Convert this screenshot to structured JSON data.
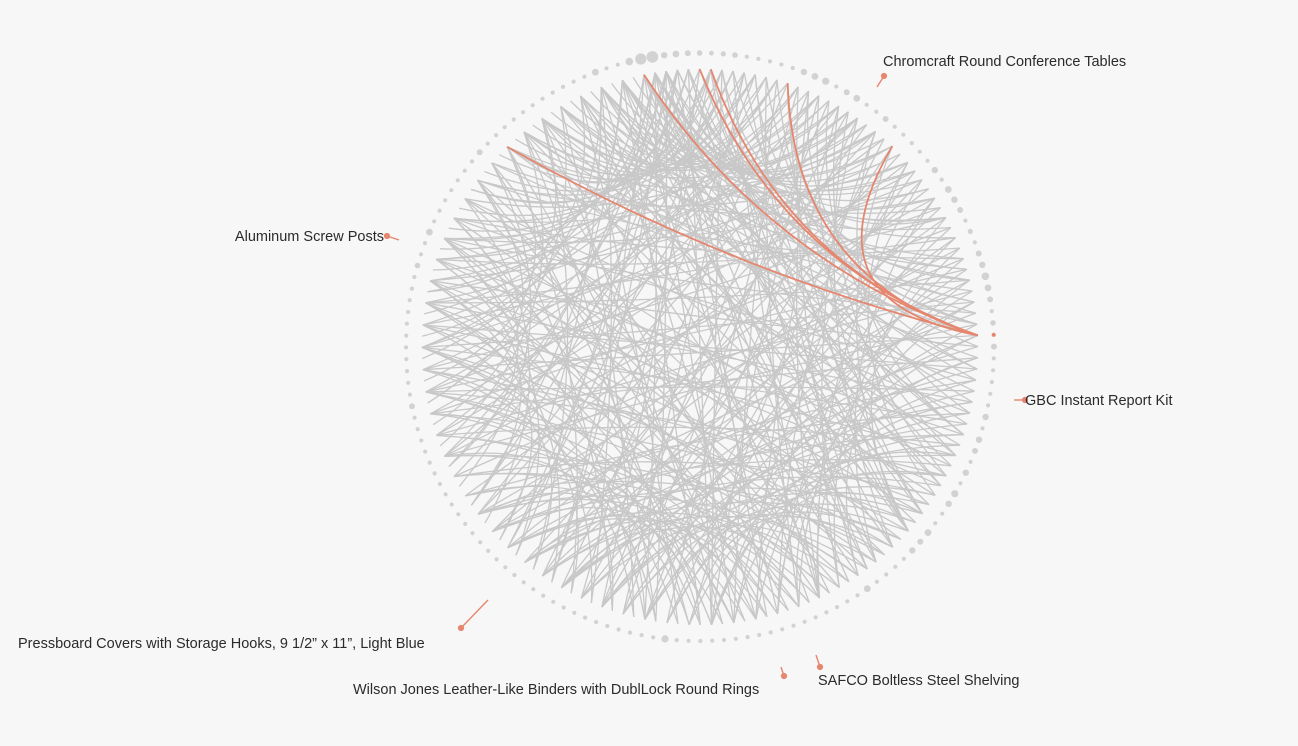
{
  "chart_data": {
    "type": "chord-network",
    "title": "",
    "node_count": 156,
    "node_sizes": {
      "0": 3.2,
      "1": 3.4,
      "2": 3.0,
      "3": 2.8,
      "4": 2.4,
      "5": 2.6,
      "6": 2.8,
      "12": 3.2,
      "13": 3.4,
      "14": 3.6,
      "16": 3.0,
      "17": 3.4,
      "20": 3.0,
      "26": 3.2,
      "28": 3.4,
      "29": 3.2,
      "30": 3.0,
      "32": 2.6,
      "34": 3.0,
      "35": 3.2,
      "36": 3.8,
      "37": 3.4,
      "38": 3.0,
      "40": 2.8,
      "42": 3.0,
      "48": 3.2,
      "50": 3.2,
      "51": 3.0,
      "53": 3.2,
      "55": 3.6,
      "56": 3.2,
      "59": 3.4,
      "60": 3.0,
      "61": 3.2,
      "66": 3.4,
      "84": 3.6,
      "115": 3.0,
      "127": 2.8,
      "130": 3.4,
      "138": 3.0,
      "150": 3.4,
      "153": 3.8,
      "154": 5.6,
      "155": 5.8
    },
    "highlight_color": "#e6866e",
    "base_color": "#c8c8c8",
    "edges": [
      [
        0,
        40
      ],
      [
        0,
        70
      ],
      [
        0,
        95
      ],
      [
        0,
        110
      ],
      [
        0,
        130
      ],
      [
        0,
        25
      ],
      [
        0,
        60
      ],
      [
        0,
        85
      ],
      [
        1,
        45
      ],
      [
        1,
        75
      ],
      [
        1,
        100
      ],
      [
        1,
        120
      ],
      [
        1,
        30
      ],
      [
        1,
        140
      ],
      [
        2,
        50
      ],
      [
        2,
        80
      ],
      [
        2,
        105
      ],
      [
        2,
        135
      ],
      [
        2,
        20
      ],
      [
        2,
        62
      ],
      [
        3,
        55
      ],
      [
        3,
        90
      ],
      [
        3,
        115
      ],
      [
        3,
        148
      ],
      [
        3,
        35
      ],
      [
        4,
        60
      ],
      [
        4,
        92
      ],
      [
        4,
        125
      ],
      [
        4,
        18
      ],
      [
        4,
        142
      ],
      [
        5,
        65
      ],
      [
        5,
        100
      ],
      [
        5,
        132
      ],
      [
        5,
        28
      ],
      [
        5,
        80
      ],
      [
        6,
        70
      ],
      [
        6,
        108
      ],
      [
        6,
        140
      ],
      [
        6,
        38
      ],
      [
        7,
        58
      ],
      [
        7,
        88
      ],
      [
        7,
        122
      ],
      [
        7,
        150
      ],
      [
        8,
        64
      ],
      [
        8,
        96
      ],
      [
        8,
        128
      ],
      [
        8,
        30
      ],
      [
        9,
        72
      ],
      [
        9,
        104
      ],
      [
        9,
        136
      ],
      [
        9,
        44
      ],
      [
        10,
        78
      ],
      [
        10,
        112
      ],
      [
        10,
        146
      ],
      [
        10,
        52
      ],
      [
        11,
        60
      ],
      [
        11,
        94
      ],
      [
        11,
        126
      ],
      [
        11,
        36
      ],
      [
        12,
        84
      ],
      [
        12,
        116
      ],
      [
        12,
        150
      ],
      [
        12,
        66
      ],
      [
        13,
        90
      ],
      [
        13,
        120
      ],
      [
        13,
        40
      ],
      [
        13,
        70
      ],
      [
        14,
        80
      ],
      [
        14,
        110
      ],
      [
        14,
        130
      ],
      [
        14,
        58
      ],
      [
        15,
        88
      ],
      [
        15,
        118
      ],
      [
        15,
        144
      ],
      [
        15,
        48
      ],
      [
        16,
        76
      ],
      [
        16,
        104
      ],
      [
        16,
        134
      ],
      [
        16,
        54
      ],
      [
        17,
        92
      ],
      [
        17,
        124
      ],
      [
        17,
        152
      ],
      [
        17,
        62
      ],
      [
        18,
        86
      ],
      [
        18,
        114
      ],
      [
        18,
        142
      ],
      [
        18,
        68
      ],
      [
        19,
        96
      ],
      [
        19,
        128
      ],
      [
        19,
        154
      ],
      [
        20,
        74
      ],
      [
        20,
        102
      ],
      [
        20,
        132
      ],
      [
        20,
        50
      ],
      [
        21,
        82
      ],
      [
        21,
        112
      ],
      [
        21,
        140
      ],
      [
        22,
        90
      ],
      [
        22,
        120
      ],
      [
        22,
        148
      ],
      [
        22,
        60
      ],
      [
        23,
        98
      ],
      [
        23,
        126
      ],
      [
        23,
        154
      ],
      [
        24,
        78
      ],
      [
        24,
        106
      ],
      [
        24,
        136
      ],
      [
        24,
        56
      ],
      [
        25,
        86
      ],
      [
        25,
        116
      ],
      [
        25,
        144
      ],
      [
        26,
        94
      ],
      [
        26,
        122
      ],
      [
        26,
        150
      ],
      [
        26,
        70
      ],
      [
        27,
        102
      ],
      [
        27,
        130
      ],
      [
        27,
        155
      ],
      [
        28,
        84
      ],
      [
        28,
        110
      ],
      [
        28,
        138
      ],
      [
        28,
        64
      ],
      [
        29,
        92
      ],
      [
        29,
        118
      ],
      [
        29,
        146
      ],
      [
        30,
        100
      ],
      [
        30,
        124
      ],
      [
        30,
        152
      ],
      [
        30,
        74
      ],
      [
        31,
        88
      ],
      [
        31,
        114
      ],
      [
        31,
        142
      ],
      [
        32,
        96
      ],
      [
        32,
        128
      ],
      [
        32,
        154
      ],
      [
        32,
        60
      ],
      [
        33,
        104
      ],
      [
        33,
        132
      ],
      [
        33,
        68
      ],
      [
        34,
        80
      ],
      [
        34,
        108
      ],
      [
        34,
        136
      ],
      [
        34,
        150
      ],
      [
        35,
        90
      ],
      [
        35,
        116
      ],
      [
        35,
        144
      ],
      [
        36,
        98
      ],
      [
        36,
        124
      ],
      [
        36,
        152
      ],
      [
        36,
        72
      ],
      [
        37,
        86
      ],
      [
        37,
        112
      ],
      [
        37,
        140
      ],
      [
        38,
        94
      ],
      [
        38,
        120
      ],
      [
        38,
        148
      ],
      [
        38,
        66
      ],
      [
        39,
        102
      ],
      [
        39,
        130
      ],
      [
        39,
        155
      ],
      [
        40,
        84
      ],
      [
        40,
        110
      ],
      [
        40,
        138
      ],
      [
        41,
        92
      ],
      [
        41,
        118
      ],
      [
        41,
        146
      ],
      [
        41,
        76
      ],
      [
        42,
        100
      ],
      [
        42,
        126
      ],
      [
        42,
        154
      ],
      [
        43,
        88
      ],
      [
        43,
        114
      ],
      [
        43,
        142
      ],
      [
        43,
        70
      ],
      [
        44,
        96
      ],
      [
        44,
        122
      ],
      [
        44,
        150
      ],
      [
        45,
        104
      ],
      [
        45,
        132
      ],
      [
        45,
        80
      ],
      [
        46,
        90
      ],
      [
        46,
        116
      ],
      [
        46,
        144
      ],
      [
        47,
        98
      ],
      [
        47,
        124
      ],
      [
        47,
        152
      ],
      [
        47,
        74
      ],
      [
        48,
        106
      ],
      [
        48,
        134
      ],
      [
        48,
        82
      ],
      [
        49,
        94
      ],
      [
        49,
        120
      ],
      [
        49,
        148
      ],
      [
        50,
        102
      ],
      [
        50,
        128
      ],
      [
        50,
        154
      ],
      [
        50,
        78
      ],
      [
        51,
        86
      ],
      [
        51,
        112
      ],
      [
        51,
        140
      ],
      [
        52,
        96
      ],
      [
        52,
        122
      ],
      [
        52,
        150
      ],
      [
        52,
        72
      ],
      [
        53,
        104
      ],
      [
        53,
        130
      ],
      [
        53,
        155
      ],
      [
        54,
        90
      ],
      [
        54,
        116
      ],
      [
        54,
        144
      ],
      [
        54,
        80
      ],
      [
        55,
        100
      ],
      [
        55,
        126
      ],
      [
        55,
        152
      ],
      [
        56,
        108
      ],
      [
        56,
        134
      ],
      [
        56,
        84
      ],
      [
        57,
        94
      ],
      [
        57,
        118
      ],
      [
        57,
        146
      ],
      [
        58,
        102
      ],
      [
        58,
        128
      ],
      [
        58,
        154
      ],
      [
        58,
        76
      ],
      [
        59,
        88
      ],
      [
        59,
        114
      ],
      [
        59,
        142
      ],
      [
        60,
        98
      ],
      [
        60,
        124
      ],
      [
        60,
        150
      ],
      [
        61,
        106
      ],
      [
        61,
        132
      ],
      [
        61,
        86
      ],
      [
        62,
        92
      ],
      [
        62,
        120
      ],
      [
        62,
        148
      ],
      [
        63,
        110
      ],
      [
        63,
        136
      ],
      [
        63,
        82
      ],
      [
        64,
        96
      ],
      [
        64,
        122
      ],
      [
        64,
        152
      ],
      [
        65,
        104
      ],
      [
        65,
        130
      ],
      [
        65,
        155
      ],
      [
        66,
        90
      ],
      [
        66,
        116
      ],
      [
        66,
        144
      ],
      [
        67,
        100
      ],
      [
        67,
        126
      ],
      [
        67,
        154
      ],
      [
        68,
        108
      ],
      [
        68,
        134
      ],
      [
        69,
        94
      ],
      [
        69,
        120
      ],
      [
        69,
        148
      ],
      [
        70,
        112
      ],
      [
        70,
        138
      ],
      [
        71,
        98
      ],
      [
        71,
        124
      ],
      [
        71,
        152
      ],
      [
        72,
        104
      ],
      [
        72,
        130
      ],
      [
        73,
        116
      ],
      [
        73,
        142
      ],
      [
        74,
        100
      ],
      [
        74,
        128
      ],
      [
        74,
        155
      ],
      [
        75,
        108
      ],
      [
        75,
        136
      ],
      [
        76,
        94
      ],
      [
        76,
        120
      ],
      [
        76,
        150
      ],
      [
        77,
        112
      ],
      [
        77,
        140
      ],
      [
        78,
        102
      ],
      [
        78,
        126
      ],
      [
        78,
        154
      ],
      [
        79,
        116
      ],
      [
        79,
        144
      ],
      [
        80,
        106
      ],
      [
        80,
        132
      ],
      [
        81,
        98
      ],
      [
        81,
        124
      ],
      [
        81,
        152
      ],
      [
        82,
        110
      ],
      [
        82,
        138
      ],
      [
        83,
        120
      ],
      [
        83,
        148
      ],
      [
        85,
        114
      ],
      [
        85,
        142
      ],
      [
        86,
        104
      ],
      [
        86,
        130
      ],
      [
        86,
        155
      ],
      [
        87,
        118
      ],
      [
        87,
        146
      ],
      [
        89,
        110
      ],
      [
        89,
        136
      ],
      [
        91,
        122
      ],
      [
        91,
        150
      ],
      [
        93,
        114
      ],
      [
        93,
        140
      ],
      [
        95,
        126
      ],
      [
        95,
        154
      ],
      [
        97,
        118
      ],
      [
        97,
        144
      ],
      [
        99,
        130
      ],
      [
        99,
        155
      ],
      [
        101,
        124
      ],
      [
        101,
        150
      ],
      [
        103,
        134
      ],
      [
        105,
        128
      ],
      [
        105,
        152
      ],
      [
        107,
        138
      ],
      [
        109,
        132
      ],
      [
        109,
        155
      ],
      [
        111,
        142
      ],
      [
        113,
        136
      ],
      [
        115,
        146
      ],
      [
        117,
        140
      ],
      [
        119,
        150
      ],
      [
        121,
        144
      ],
      [
        123,
        154
      ],
      [
        125,
        148
      ],
      [
        127,
        152
      ],
      [
        129,
        155
      ],
      [
        131,
        0
      ],
      [
        133,
        2
      ],
      [
        135,
        4
      ],
      [
        137,
        6
      ],
      [
        139,
        8
      ],
      [
        141,
        10
      ],
      [
        143,
        12
      ],
      [
        145,
        14
      ],
      [
        147,
        16
      ],
      [
        149,
        18
      ],
      [
        151,
        20
      ],
      [
        153,
        22
      ],
      [
        155,
        24
      ]
    ],
    "highlighted_edges": [
      [
        41,
        22
      ],
      [
        41,
        140
      ],
      [
        41,
        154
      ],
      [
        41,
        11
      ],
      [
        41,
        3
      ],
      [
        41,
        4
      ]
    ],
    "labels": [
      {
        "node": 140,
        "text": "Chromcraft Round Conference Tables"
      },
      {
        "node": 22,
        "text": "Aluminum Screw Posts"
      },
      {
        "node": 154,
        "text": "GBC Instant Report Kit"
      },
      {
        "node": 41,
        "text": "Pressboard Covers with Storage Hooks, 9 1/2” x 11”, Light Blue"
      },
      {
        "node": 4,
        "text": "Wilson Jones Leather-Like Binders with DublLock Round Rings"
      },
      {
        "node": 11,
        "text": "SAFCO Boltless Steel Shelving"
      }
    ]
  }
}
